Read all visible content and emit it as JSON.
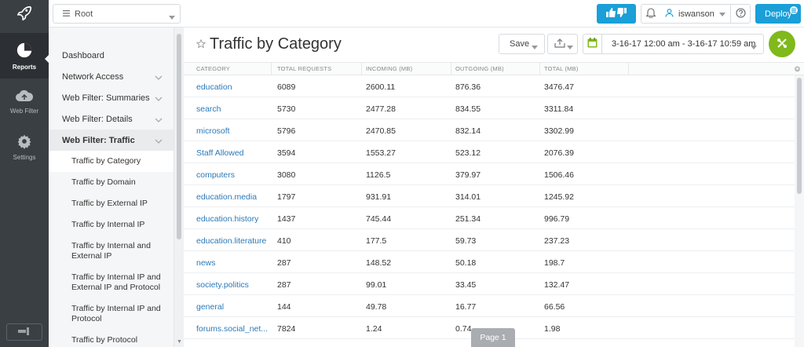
{
  "rail": {
    "items": [
      {
        "label": "Reports",
        "icon": "pie-chart-icon",
        "active": true
      },
      {
        "label": "Web Filter",
        "icon": "cloud-icon",
        "active": false
      },
      {
        "label": "Settings",
        "icon": "gear-icon",
        "active": false
      }
    ]
  },
  "topbar": {
    "root_label": "Root",
    "user_name": "iswanson",
    "deploy_label": "Deploy"
  },
  "submenu": {
    "items": [
      {
        "label": "Dashboard"
      },
      {
        "label": "Network Access"
      },
      {
        "label": "Web Filter: Summaries"
      },
      {
        "label": "Web Filter: Details"
      },
      {
        "label": "Web Filter: Traffic"
      }
    ],
    "subitems": [
      {
        "label": "Traffic by Category"
      },
      {
        "label": "Traffic by Domain"
      },
      {
        "label": "Traffic by External IP"
      },
      {
        "label": "Traffic by Internal IP"
      },
      {
        "label": "Traffic by Internal and External IP"
      },
      {
        "label": "Traffic by Internal IP and External IP and Protocol"
      },
      {
        "label": "Traffic by Internal IP and Protocol"
      },
      {
        "label": "Traffic by Protocol"
      }
    ]
  },
  "main": {
    "title": "Traffic by Category",
    "save_label": "Save",
    "date_range": "3-16-17 12:00 am - 3-16-17 10:59 am",
    "page_label": "Page 1"
  },
  "table": {
    "columns": [
      "CATEGORY",
      "TOTAL REQUESTS",
      "INCOMING (MB)",
      "OUTGOING (MB)",
      "TOTAL (MB)"
    ],
    "rows": [
      [
        "education",
        "6089",
        "2600.11",
        "876.36",
        "3476.47"
      ],
      [
        "search",
        "5730",
        "2477.28",
        "834.55",
        "3311.84"
      ],
      [
        "microsoft",
        "5796",
        "2470.85",
        "832.14",
        "3302.99"
      ],
      [
        "Staff Allowed",
        "3594",
        "1553.27",
        "523.12",
        "2076.39"
      ],
      [
        "computers",
        "3080",
        "1126.5",
        "379.97",
        "1506.46"
      ],
      [
        "education.media",
        "1797",
        "931.91",
        "314.01",
        "1245.92"
      ],
      [
        "education.history",
        "1437",
        "745.44",
        "251.34",
        "996.79"
      ],
      [
        "education.literature",
        "410",
        "177.5",
        "59.73",
        "237.23"
      ],
      [
        "news",
        "287",
        "148.52",
        "50.18",
        "198.7"
      ],
      [
        "society.politics",
        "287",
        "99.01",
        "33.45",
        "132.47"
      ],
      [
        "general",
        "144",
        "49.78",
        "16.77",
        "66.56"
      ],
      [
        "forums.social_net...",
        "7824",
        "1.24",
        "0.74",
        "1.98"
      ]
    ]
  },
  "colors": {
    "accent_blue": "#1a9fd8",
    "green_button": "#7fb91b",
    "rail_bg": "#3a3f44",
    "link": "#2b79b8"
  }
}
